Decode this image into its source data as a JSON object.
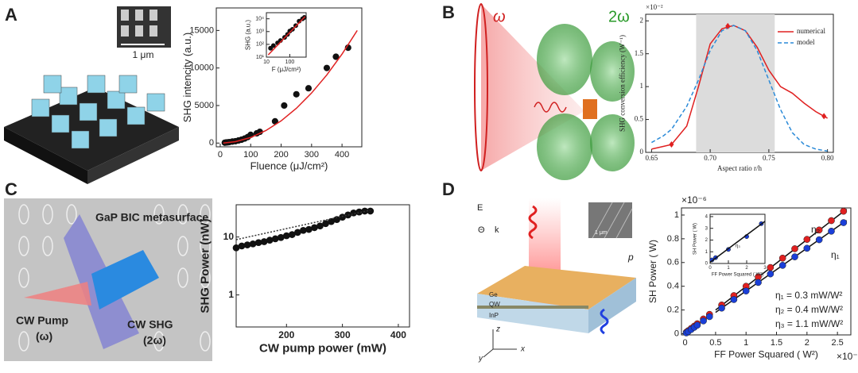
{
  "panel_labels": [
    "A",
    "B",
    "C",
    "D"
  ],
  "illustration_labels": {
    "scale_a": "1 μm",
    "omega": "ω",
    "two_omega": "2ω",
    "metasurface": "GaP BIC metasurface",
    "pump": "CW Pump",
    "pump_freq": "(ω)",
    "shg": "CW SHG",
    "shg_freq": "(2ω)",
    "e_ff": "E",
    "k_ff": "k",
    "theta": "Θ",
    "ge": "Ge",
    "qw": "QW",
    "inp": "InP",
    "period": "p",
    "ax_x": "x",
    "ax_y": "y",
    "ax_z": "z",
    "scale_d": "1 μm"
  },
  "chart_data": [
    {
      "type": "scatter",
      "x_label": "Fluence (μJ/cm²)",
      "y_label": "SHG intencity (a.u.)",
      "xlim": [
        -13,
        465
      ],
      "xticks": [
        0,
        100,
        200,
        300,
        400
      ],
      "ylim": [
        -500,
        18000
      ],
      "yticks": [
        0,
        5000,
        10000,
        15000
      ],
      "series": [
        {
          "color": "#111111",
          "mode": "markers",
          "x": [
            15,
            20,
            25,
            30,
            40,
            50,
            60,
            70,
            80,
            90,
            100,
            120,
            130,
            180,
            210,
            250,
            290,
            350,
            380,
            420
          ],
          "values": [
            50,
            80,
            100,
            130,
            200,
            250,
            350,
            450,
            600,
            800,
            1100,
            1300,
            1500,
            2900,
            5000,
            6500,
            7300,
            10000,
            11500,
            12700
          ]
        },
        {
          "color": "#e02020",
          "mode": "lines",
          "x": [
            10,
            50,
            100,
            150,
            200,
            250,
            300,
            350,
            400,
            450
          ],
          "values": [
            7,
            185,
            740,
            1670,
            2960,
            4630,
            6670,
            9070,
            11850,
            15000
          ]
        }
      ]
    },
    {
      "type": "scatter",
      "x_label": "F (μJ/cm²)",
      "y_label": "SHG (a.u.)",
      "log_x": true,
      "log_y": true,
      "xlim": [
        10,
        500
      ],
      "xticks": [
        10,
        100
      ],
      "ylim": [
        10,
        30000
      ],
      "yticks": [
        {
          "value": 10,
          "label": "10¹"
        },
        {
          "value": 100,
          "label": "10²"
        },
        {
          "value": 1000,
          "label": "10³"
        },
        {
          "value": 10000,
          "label": "10⁴"
        }
      ],
      "series": [
        {
          "color": "#111111",
          "mode": "markers",
          "x": [
            15,
            20,
            30,
            40,
            60,
            80,
            100,
            130,
            180,
            250,
            350,
            420
          ],
          "values": [
            50,
            80,
            130,
            200,
            350,
            600,
            1100,
            1500,
            2900,
            6500,
            10000,
            12700
          ]
        },
        {
          "color": "#e02020",
          "mode": "lines",
          "x": [
            12,
            450
          ],
          "values": [
            15,
            15000
          ]
        }
      ]
    },
    {
      "type": "line",
      "x_label": "Aspect ratio r/h",
      "y_label": "SHG conversion efficiency (W⁻¹)",
      "xlim": [
        0.645,
        0.805
      ],
      "xticks": [
        0.65,
        {
          "value": 0.7,
          "label": "0.70"
        },
        0.75,
        {
          "value": 0.8,
          "label": "0.80"
        }
      ],
      "ylim": [
        0,
        2.1
      ],
      "yticks": [
        0,
        0.5,
        1,
        1.5,
        2
      ],
      "shade": [
        0.688,
        0.755
      ],
      "legend": "upper right",
      "annotations": [
        "×10⁻²"
      ],
      "series": [
        {
          "name": "numerical",
          "color": "#e02020",
          "mode": "lines",
          "x": [
            0.65,
            0.66,
            0.667,
            0.68,
            0.69,
            0.7,
            0.71,
            0.72,
            0.73,
            0.74,
            0.75,
            0.76,
            0.77,
            0.78,
            0.79,
            0.8
          ],
          "values": [
            0.05,
            0.09,
            0.12,
            0.4,
            1.0,
            1.65,
            1.88,
            1.93,
            1.85,
            1.6,
            1.25,
            1.0,
            0.9,
            0.75,
            0.62,
            0.52
          ]
        },
        {
          "name": "model",
          "color": "#2a8ad8",
          "mode": "dashed",
          "x": [
            0.65,
            0.66,
            0.667,
            0.68,
            0.69,
            0.7,
            0.71,
            0.72,
            0.73,
            0.74,
            0.75,
            0.76,
            0.77,
            0.78,
            0.79,
            0.8
          ],
          "values": [
            0.15,
            0.25,
            0.35,
            0.7,
            1.1,
            1.55,
            1.85,
            1.93,
            1.85,
            1.55,
            1.1,
            0.65,
            0.3,
            0.12,
            0.05,
            0.02
          ]
        },
        {
          "color": "#e02020",
          "mode": "diamonds",
          "x": [
            0.667,
            0.715,
            0.797
          ],
          "values": [
            0.12,
            1.92,
            0.55
          ]
        }
      ]
    },
    {
      "type": "scatter",
      "x_label": "CW pump power (mW)",
      "y_label": "SHG Power (nW)",
      "log_y": true,
      "xlim": [
        110,
        420
      ],
      "xticks": [
        200,
        300,
        400
      ],
      "ylim": [
        0.28,
        36
      ],
      "yticks": [
        1,
        10
      ],
      "series": [
        {
          "color": "#111111",
          "mode": "markers",
          "x": [
            110,
            120,
            130,
            140,
            150,
            160,
            170,
            180,
            190,
            200,
            210,
            220,
            230,
            240,
            250,
            260,
            270,
            280,
            290,
            300,
            310,
            320,
            330,
            340,
            350
          ],
          "values": [
            6.5,
            7,
            7.3,
            7.6,
            8,
            8.3,
            8.8,
            9.3,
            9.8,
            10.5,
            11,
            12,
            13,
            13.5,
            14.5,
            15.5,
            17,
            18.5,
            20,
            22,
            24,
            26,
            27,
            28,
            28
          ]
        },
        {
          "color": "#333333",
          "mode": "dotted",
          "x": [
            110,
            350
          ],
          "values": [
            9,
            29
          ]
        }
      ]
    },
    {
      "type": "scatter",
      "x_label": "FF Power Squared ( W²)",
      "y_label": "SH Power ( W)",
      "xlim": [
        -0.06,
        2.72
      ],
      "xticks": [
        0,
        0.5,
        1,
        1.5,
        2,
        2.5
      ],
      "ylim": [
        -0.01,
        1.06
      ],
      "yticks": [
        0,
        0.2,
        0.4,
        0.6,
        0.8,
        1
      ],
      "annotations": [
        "×10⁻³",
        "×10⁻⁶",
        "η₂",
        "η₁",
        "η₁ = 0.3 mW/W²",
        "η₂ = 0.4 mW/W²",
        "η₃ = 1.1 mW/W²"
      ],
      "series": [
        {
          "color": "#111111",
          "mode": "lines",
          "x": [
            0.5,
            2.65
          ],
          "values": [
            0.2,
            1.05
          ]
        },
        {
          "color": "#111111",
          "mode": "lines",
          "x": [
            0.5,
            2.65
          ],
          "values": [
            0.18,
            0.955
          ]
        },
        {
          "color": "#e02020",
          "mode": "markers",
          "x": [
            0.02,
            0.05,
            0.1,
            0.15,
            0.2,
            0.3,
            0.4,
            0.6,
            0.8,
            1.0,
            1.2,
            1.4,
            1.6,
            1.8,
            2.0,
            2.2,
            2.4,
            2.6
          ],
          "values": [
            0.013,
            0.025,
            0.045,
            0.064,
            0.084,
            0.124,
            0.163,
            0.242,
            0.321,
            0.4,
            0.479,
            0.558,
            0.637,
            0.716,
            0.795,
            0.874,
            0.953,
            1.032
          ]
        },
        {
          "color": "#1a3fd8",
          "mode": "markers",
          "x": [
            0.02,
            0.05,
            0.1,
            0.15,
            0.2,
            0.3,
            0.4,
            0.6,
            0.8,
            1.0,
            1.2,
            1.4,
            1.6,
            1.8,
            2.0,
            2.2,
            2.4,
            2.6
          ],
          "values": [
            0.007,
            0.018,
            0.036,
            0.054,
            0.072,
            0.108,
            0.144,
            0.216,
            0.288,
            0.36,
            0.432,
            0.504,
            0.576,
            0.648,
            0.72,
            0.792,
            0.864,
            0.936
          ]
        }
      ]
    },
    {
      "type": "scatter",
      "x_label": "FF Power Squared ( W²)",
      "y_label": "SH Power ( W)",
      "xlim": [
        0,
        3
      ],
      "xticks": [
        0,
        1,
        2,
        3
      ],
      "ylim": [
        0,
        4.2
      ],
      "yticks": [
        0,
        1,
        2,
        3,
        4
      ],
      "annotations": [
        "η₃"
      ],
      "series": [
        {
          "color": "#1a3fd8",
          "mode": "markers",
          "x": [
            0.1,
            0.3,
            1.0,
            2.0,
            2.8
          ],
          "values": [
            0.3,
            0.5,
            1.2,
            2.3,
            3.4
          ]
        },
        {
          "color": "#111111",
          "mode": "lines",
          "x": [
            0,
            3
          ],
          "values": [
            0.1,
            3.6
          ]
        }
      ]
    }
  ]
}
